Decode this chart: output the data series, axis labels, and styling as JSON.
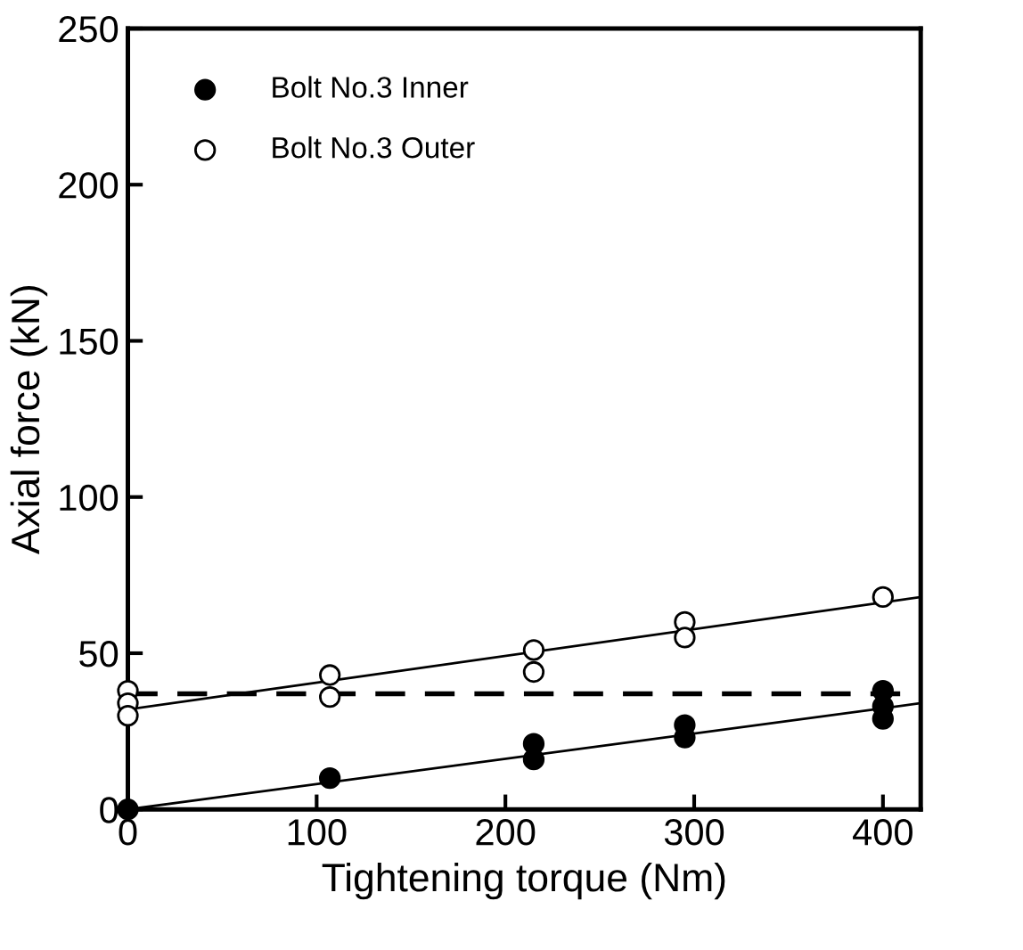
{
  "chart_data": {
    "type": "scatter",
    "xlabel": "Tightening torque (Nm)",
    "ylabel": "Axial force (kN)",
    "xlim": [
      0,
      420
    ],
    "xticks": [
      0,
      100,
      200,
      300,
      400
    ],
    "ylim": [
      0,
      250
    ],
    "yticks": [
      0,
      50,
      100,
      150,
      200,
      250
    ],
    "grid": false,
    "legend": "top left",
    "series": [
      {
        "name": "Bolt No.3 Inner",
        "color": "#000000",
        "marker": "circle",
        "x": [
          0,
          107,
          215,
          215,
          295,
          295,
          400,
          400,
          400
        ],
        "values": [
          0,
          10,
          21,
          16,
          27,
          23,
          38,
          33,
          29
        ]
      },
      {
        "name": "Bolt No.3 Outer",
        "color": "#ffffff",
        "marker": "circle",
        "x": [
          0,
          0,
          0,
          107,
          107,
          215,
          215,
          295,
          295,
          400
        ],
        "values": [
          38,
          34,
          30,
          43,
          36,
          51,
          44,
          60,
          55,
          68
        ]
      },
      {
        "type": "line",
        "color": "#000000",
        "line_style": "solid",
        "x": [
          0,
          420
        ],
        "values": [
          0,
          34
        ]
      },
      {
        "type": "line",
        "color": "#000000",
        "line_style": "solid",
        "x": [
          0,
          420
        ],
        "values": [
          32,
          68
        ]
      }
    ],
    "ref_lines": [
      {
        "axis": "y",
        "value": 37,
        "color": "#000000",
        "line_style": "dashed"
      }
    ]
  }
}
